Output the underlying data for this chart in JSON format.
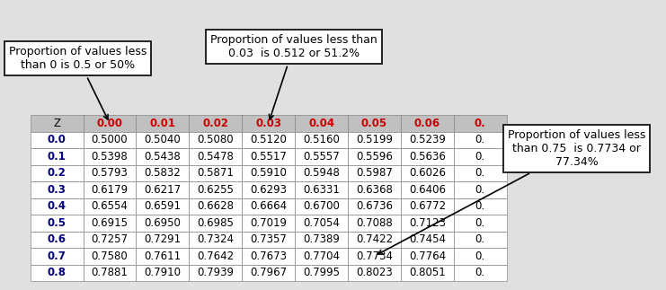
{
  "col_headers": [
    "Z",
    "0.00",
    "0.01",
    "0.02",
    "0.03",
    "0.04",
    "0.05",
    "0.06",
    "0."
  ],
  "row_labels": [
    "0.0",
    "0.1",
    "0.2",
    "0.3",
    "0.4",
    "0.5",
    "0.6",
    "0.7",
    "0.8"
  ],
  "table_data": [
    [
      "0.5000",
      "0.5040",
      "0.5080",
      "0.5120",
      "0.5160",
      "0.5199",
      "0.5239",
      "0."
    ],
    [
      "0.5398",
      "0.5438",
      "0.5478",
      "0.5517",
      "0.5557",
      "0.5596",
      "0.5636",
      "0."
    ],
    [
      "0.5793",
      "0.5832",
      "0.5871",
      "0.5910",
      "0.5948",
      "0.5987",
      "0.6026",
      "0."
    ],
    [
      "0.6179",
      "0.6217",
      "0.6255",
      "0.6293",
      "0.6331",
      "0.6368",
      "0.6406",
      "0."
    ],
    [
      "0.6554",
      "0.6591",
      "0.6628",
      "0.6664",
      "0.6700",
      "0.6736",
      "0.6772",
      "0."
    ],
    [
      "0.6915",
      "0.6950",
      "0.6985",
      "0.7019",
      "0.7054",
      "0.7088",
      "0.7123",
      "0."
    ],
    [
      "0.7257",
      "0.7291",
      "0.7324",
      "0.7357",
      "0.7389",
      "0.7422",
      "0.7454",
      "0."
    ],
    [
      "0.7580",
      "0.7611",
      "0.7642",
      "0.7673",
      "0.7704",
      "0.7734",
      "0.7764",
      "0."
    ],
    [
      "0.7881",
      "0.7910",
      "0.7939",
      "0.7967",
      "0.7995",
      "0.8023",
      "0.8051",
      "0."
    ]
  ],
  "header_bg": "#c0c0c0",
  "header_text": "#cc0000",
  "row_label_color": "#000080",
  "annot1_text": "Proportion of values less\nthan 0 is 0.5 or 50%",
  "annot2_text": "Proportion of values less than\n0.03  is 0.512 or 51.2%",
  "annot3_text": "Proportion of values less\nthan 0.75  is 0.7734 or\n77.34%",
  "bg_color": "#e0e0e0",
  "title_fontsize": 9.0,
  "table_fontsize": 8.5
}
